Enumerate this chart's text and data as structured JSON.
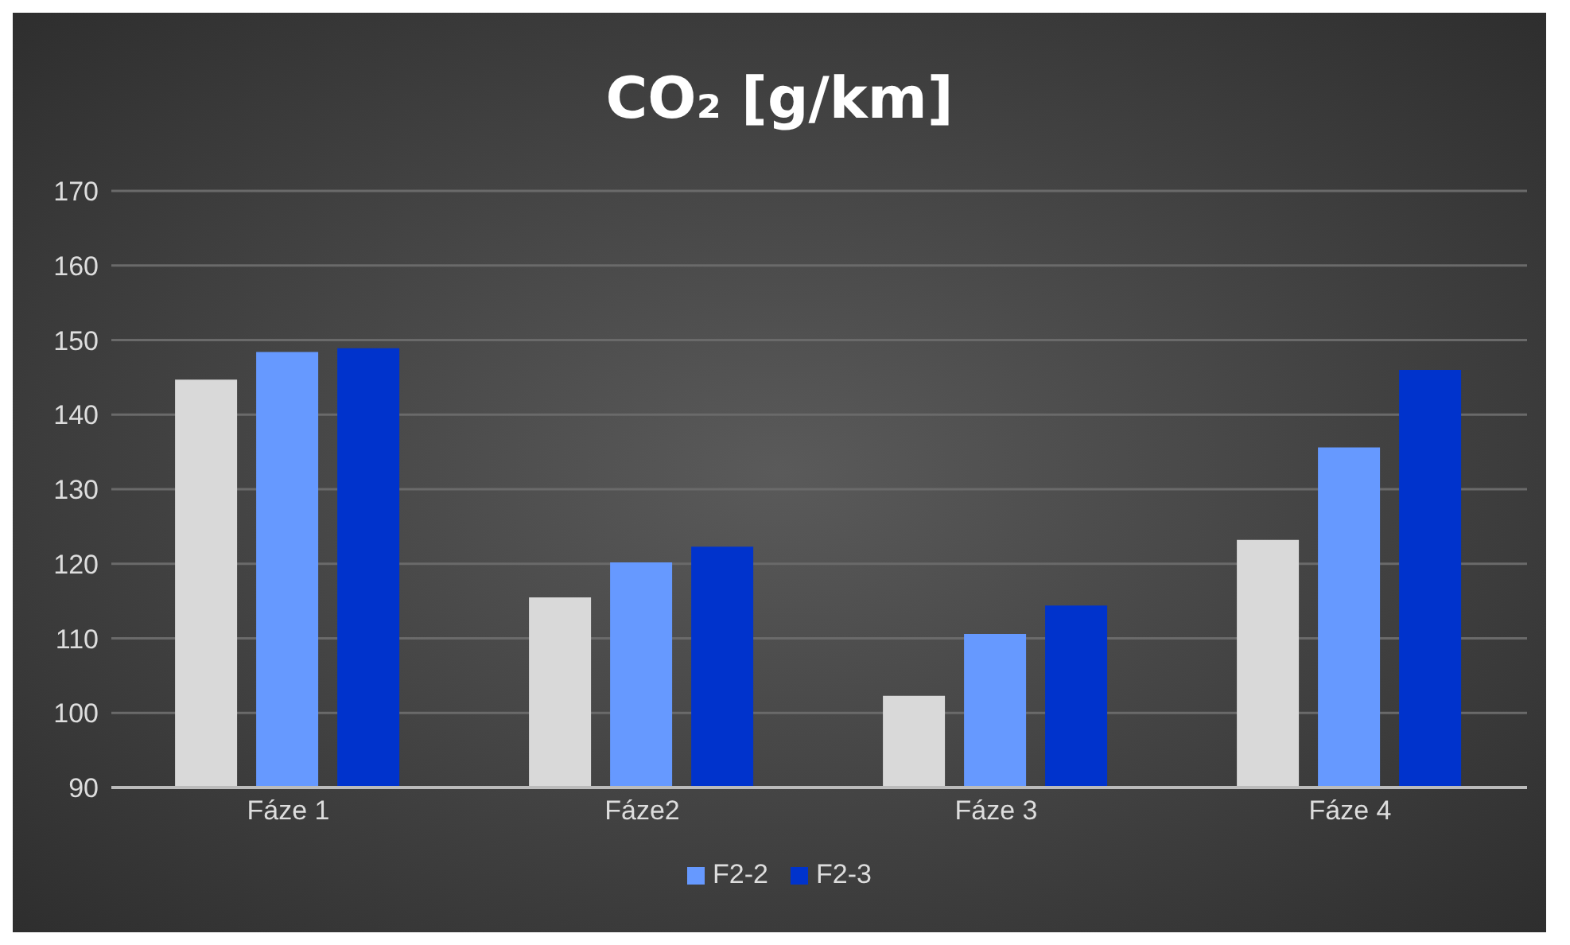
{
  "chart_data": {
    "type": "bar",
    "title": "CO₂ [g/km]",
    "categories": [
      "Fáze 1",
      "Fáze2",
      "Fáze 3",
      "Fáze 4"
    ],
    "series": [
      {
        "color": "#d9d9d9",
        "values": [
          144.7,
          115.5,
          102.3,
          123.2
        ]
      },
      {
        "name": "F2-2",
        "color": "#6699ff",
        "values": [
          148.4,
          120.2,
          110.6,
          135.6
        ]
      },
      {
        "name": "F2-3",
        "color": "#0033cc",
        "values": [
          148.9,
          122.3,
          114.4,
          146
        ]
      }
    ],
    "ylim": [
      90,
      170
    ],
    "yticks": [
      90,
      100,
      110,
      120,
      130,
      140,
      150,
      160,
      170
    ],
    "grid": "y",
    "legend": "bottom"
  }
}
